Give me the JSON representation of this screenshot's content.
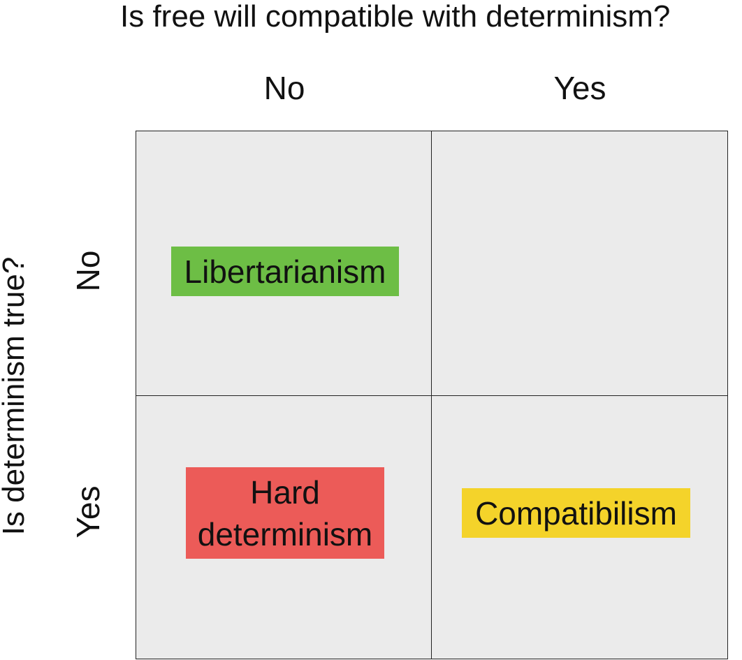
{
  "column_question": "Is free will compatible with determinism?",
  "row_question": "Is determinism true?",
  "columns": {
    "no": "No",
    "yes": "Yes"
  },
  "rows": {
    "no": "No",
    "yes": "Yes"
  },
  "cells": {
    "no_no": {
      "label": "Libertarianism",
      "color": "#6dbe45"
    },
    "no_yes": {
      "label": ""
    },
    "yes_no": {
      "label_line1": "Hard",
      "label_line2": "determinism",
      "color": "#ec5b58"
    },
    "yes_yes": {
      "label": "Compatibilism",
      "color": "#f4d32a"
    }
  },
  "colors": {
    "cell_background": "#ebebeb",
    "grid_line": "#222222"
  }
}
